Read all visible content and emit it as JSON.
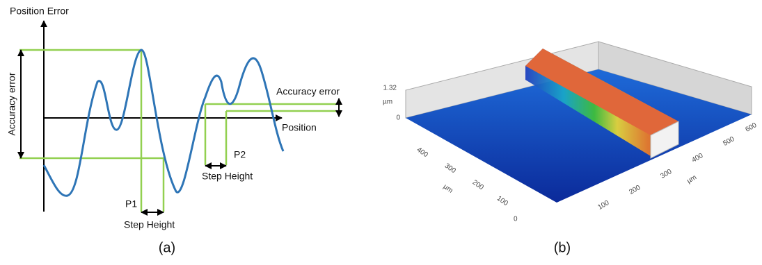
{
  "panel_a": {
    "y_axis_label": "Position Error",
    "x_axis_label": "Position",
    "accuracy_error_left": "Accuracy error",
    "accuracy_error_right": "Accuracy error",
    "p1": "P1",
    "p2": "P2",
    "step_height_1": "Step Height",
    "step_height_2": "Step Height",
    "caption": "(a)"
  },
  "panel_b": {
    "z_axis": {
      "unit": "µm",
      "ticks": [
        "1.32",
        "0"
      ]
    },
    "y_axis": {
      "unit": "µm",
      "ticks": [
        "400",
        "300",
        "200",
        "100",
        "0"
      ]
    },
    "x_axis": {
      "unit": "µm",
      "ticks": [
        "100",
        "200",
        "300",
        "400",
        "500",
        "600"
      ]
    },
    "caption": "(b)"
  }
}
